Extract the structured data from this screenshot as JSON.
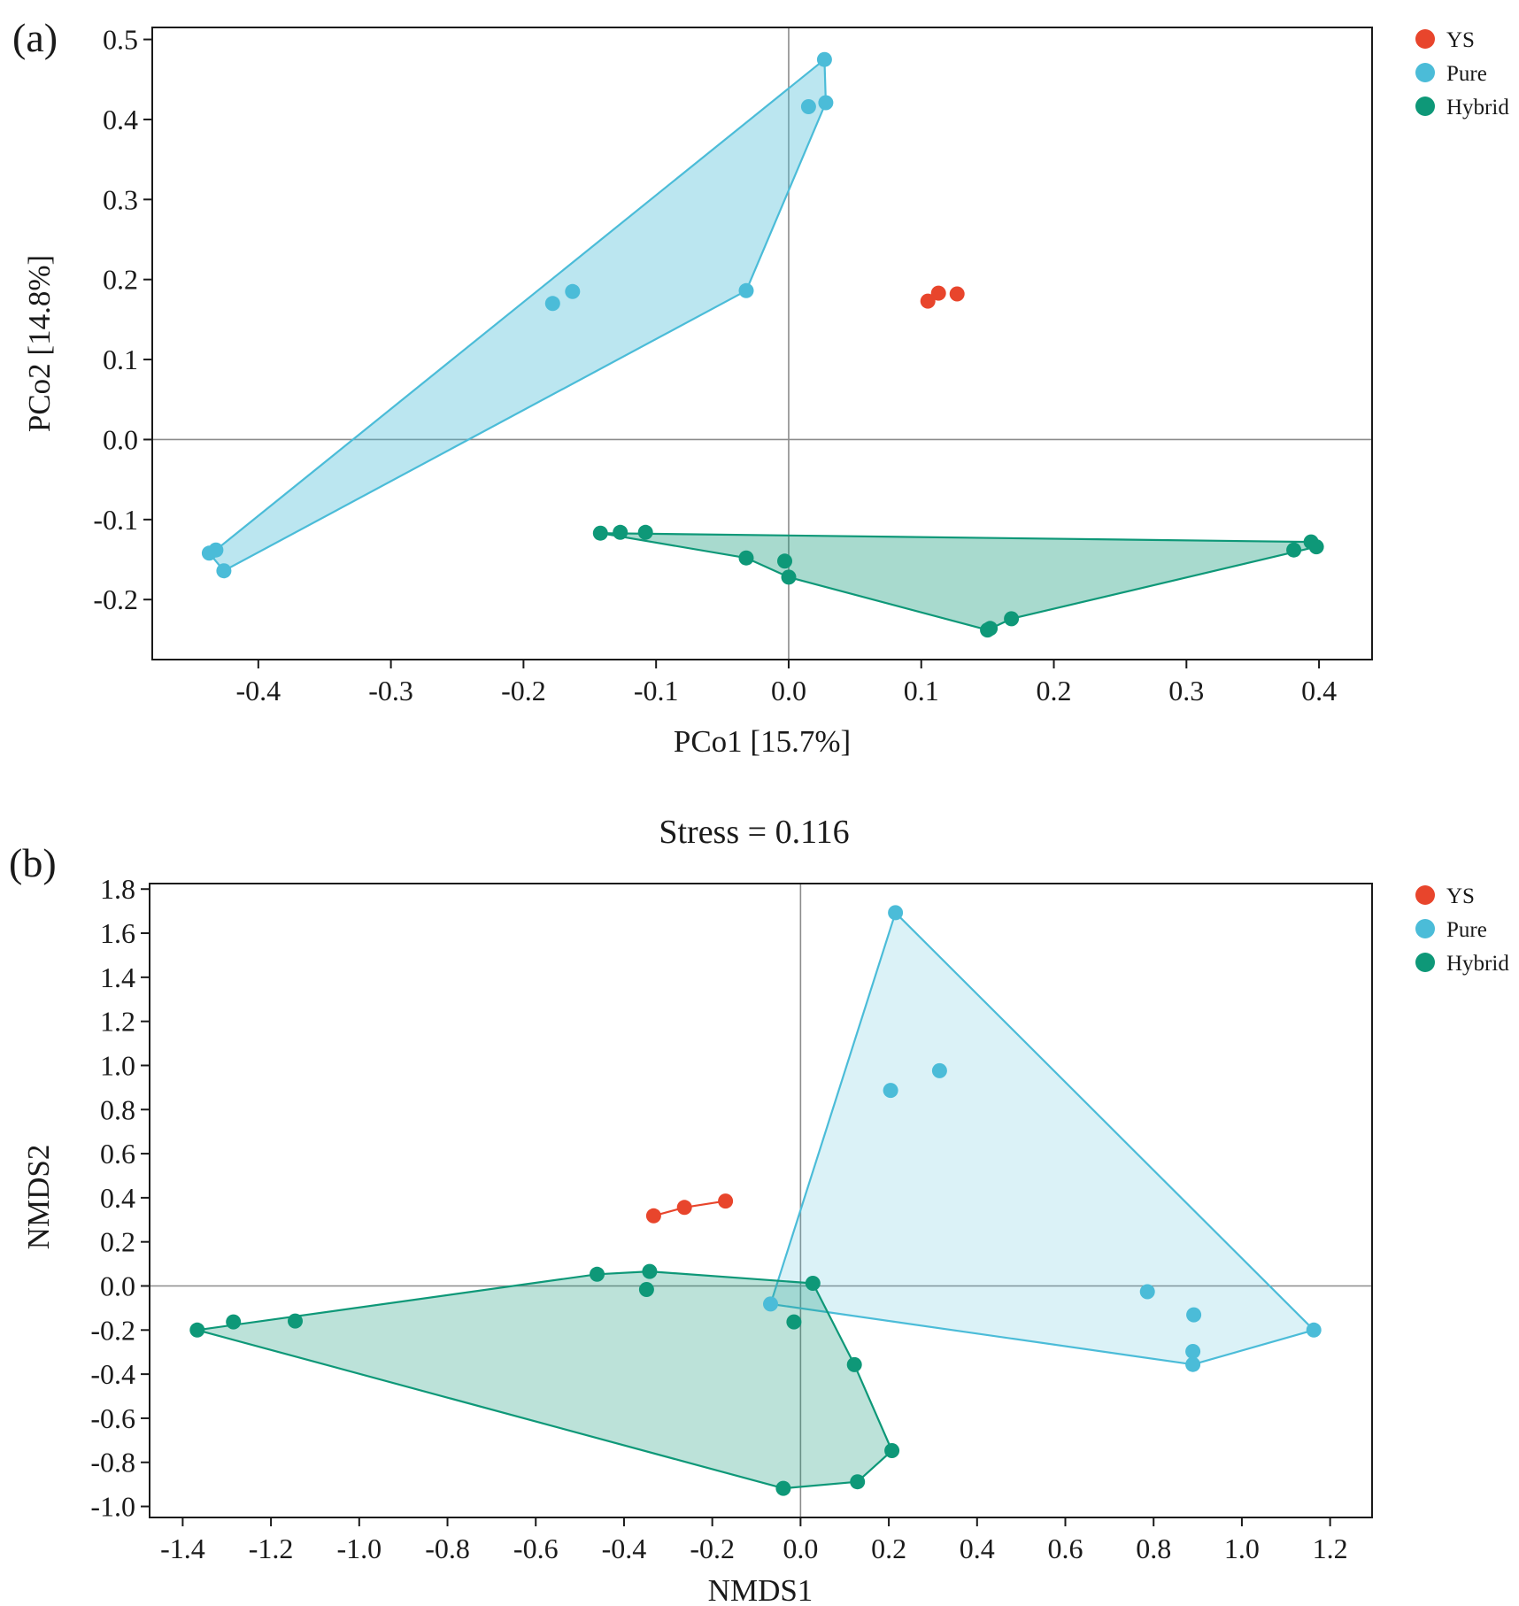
{
  "colors": {
    "ys": "#e8452c",
    "pure": "#4bbcd8",
    "hybrid": "#0e9878"
  },
  "chart_data": [
    {
      "id": "a",
      "type": "scatter",
      "panel_label": "(a)",
      "title": "",
      "xlabel": "PCo1 [15.7%]",
      "ylabel": "PCo2 [14.8%]",
      "xlim": [
        -0.48,
        0.44
      ],
      "ylim": [
        -0.275,
        0.515
      ],
      "xticks": [
        -0.4,
        -0.3,
        -0.2,
        -0.1,
        0.0,
        0.1,
        0.2,
        0.3,
        0.4
      ],
      "xtick_labels": [
        "-0.4",
        "-0.3",
        "-0.2",
        "-0.1",
        "0.0",
        "0.1",
        "0.2",
        "0.3",
        "0.4"
      ],
      "yticks": [
        -0.2,
        -0.1,
        0.0,
        0.1,
        0.2,
        0.3,
        0.4,
        0.5
      ],
      "ytick_labels": [
        "-0.2",
        "-0.1",
        "0.0",
        "0.1",
        "0.2",
        "0.3",
        "0.4",
        "0.5"
      ],
      "legend_position": "outside-top-right",
      "series": [
        {
          "name": "YS",
          "color": "#e8452c",
          "hull": false,
          "connect": false,
          "points": [
            [
              0.105,
              0.173
            ],
            [
              0.113,
              0.183
            ],
            [
              0.127,
              0.182
            ]
          ]
        },
        {
          "name": "Pure",
          "color": "#4bbcd8",
          "hull": true,
          "fill_opacity": 0.38,
          "points": [
            [
              0.027,
              0.475
            ],
            [
              0.028,
              0.421
            ],
            [
              0.015,
              0.416
            ],
            [
              -0.032,
              0.186
            ],
            [
              -0.163,
              0.185
            ],
            [
              -0.178,
              0.17
            ],
            [
              -0.432,
              -0.138
            ],
            [
              -0.437,
              -0.142
            ],
            [
              -0.426,
              -0.164
            ]
          ],
          "hull_order": [
            0,
            1,
            3,
            8,
            7,
            6
          ]
        },
        {
          "name": "Hybrid",
          "color": "#0e9878",
          "hull": true,
          "fill_opacity": 0.36,
          "points": [
            [
              -0.142,
              -0.117
            ],
            [
              -0.127,
              -0.116
            ],
            [
              -0.108,
              -0.116
            ],
            [
              -0.032,
              -0.148
            ],
            [
              -0.003,
              -0.152
            ],
            [
              0.0,
              -0.172
            ],
            [
              0.15,
              -0.238
            ],
            [
              0.152,
              -0.236
            ],
            [
              0.168,
              -0.224
            ],
            [
              0.381,
              -0.138
            ],
            [
              0.394,
              -0.128
            ],
            [
              0.398,
              -0.134
            ]
          ],
          "hull_order": [
            0,
            10,
            11,
            8,
            6,
            5,
            3
          ]
        }
      ]
    },
    {
      "id": "b",
      "type": "scatter",
      "panel_label": "(b)",
      "title": "Stress = 0.116",
      "xlabel": "NMDS1",
      "ylabel": "NMDS2",
      "xlim": [
        -1.475,
        1.295
      ],
      "ylim": [
        -1.05,
        1.825
      ],
      "xticks": [
        -1.4,
        -1.2,
        -1.0,
        -0.8,
        -0.6,
        -0.4,
        -0.2,
        0.0,
        0.2,
        0.4,
        0.6,
        0.8,
        1.0,
        1.2
      ],
      "xtick_labels": [
        "-1.4",
        "-1.2",
        "-1.0",
        "-0.8",
        "-0.6",
        "-0.4",
        "-0.2",
        "0.0",
        "0.2",
        "0.4",
        "0.6",
        "0.8",
        "1.0",
        "1.2"
      ],
      "yticks": [
        -1.0,
        -0.8,
        -0.6,
        -0.4,
        -0.2,
        0.0,
        0.2,
        0.4,
        0.6,
        0.8,
        1.0,
        1.2,
        1.4,
        1.6,
        1.8
      ],
      "ytick_labels": [
        "-1.0",
        "-0.8",
        "-0.6",
        "-0.4",
        "-0.2",
        "0.0",
        "0.2",
        "0.4",
        "0.6",
        "0.8",
        "1.0",
        "1.2",
        "1.4",
        "1.6",
        "1.8"
      ],
      "legend_position": "outside-top-right",
      "series": [
        {
          "name": "YS",
          "color": "#e8452c",
          "hull": false,
          "connect": true,
          "points": [
            [
              -0.333,
              0.318
            ],
            [
              -0.263,
              0.356
            ],
            [
              -0.17,
              0.385
            ]
          ]
        },
        {
          "name": "Pure",
          "color": "#4bbcd8",
          "hull": true,
          "fill_opacity": 0.2,
          "points": [
            [
              0.215,
              1.693
            ],
            [
              0.315,
              0.976
            ],
            [
              0.204,
              0.887
            ],
            [
              0.786,
              -0.026
            ],
            [
              0.891,
              -0.131
            ],
            [
              0.889,
              -0.297
            ],
            [
              0.889,
              -0.356
            ],
            [
              1.163,
              -0.2
            ],
            [
              -0.068,
              -0.082
            ]
          ],
          "hull_order": [
            0,
            7,
            6,
            8
          ]
        },
        {
          "name": "Hybrid",
          "color": "#0e9878",
          "hull": true,
          "fill_opacity": 0.28,
          "points": [
            [
              -1.367,
              -0.2
            ],
            [
              -1.285,
              -0.163
            ],
            [
              -1.145,
              -0.159
            ],
            [
              -0.461,
              0.053
            ],
            [
              -0.342,
              0.066
            ],
            [
              -0.349,
              -0.016
            ],
            [
              0.028,
              0.012
            ],
            [
              -0.015,
              -0.163
            ],
            [
              0.122,
              -0.357
            ],
            [
              0.207,
              -0.747
            ],
            [
              0.129,
              -0.888
            ],
            [
              -0.039,
              -0.918
            ]
          ],
          "hull_order": [
            0,
            3,
            4,
            6,
            8,
            9,
            10,
            11
          ]
        }
      ]
    }
  ]
}
